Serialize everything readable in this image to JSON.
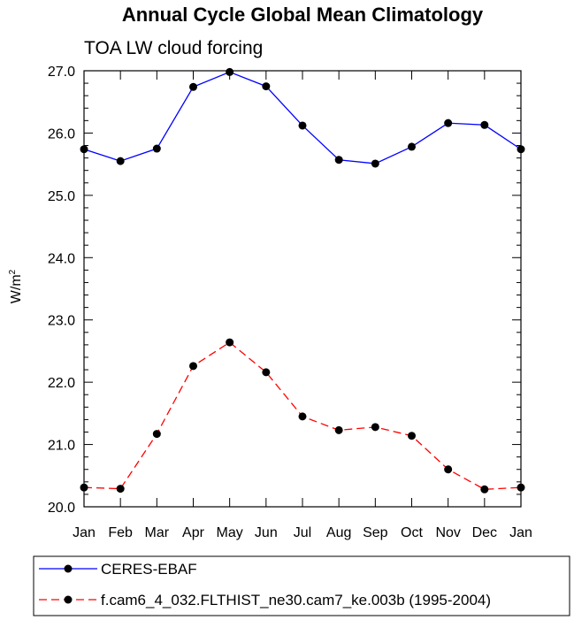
{
  "chart_data": {
    "type": "line",
    "title": "Annual Cycle Global Mean Climatology",
    "subtitle": "TOA LW cloud forcing",
    "ylabel": "W/m",
    "ylabel_sup": "2",
    "categories": [
      "Jan",
      "Feb",
      "Mar",
      "Apr",
      "May",
      "Jun",
      "Jul",
      "Aug",
      "Sep",
      "Oct",
      "Nov",
      "Dec",
      "Jan"
    ],
    "ylim": [
      20.0,
      27.0
    ],
    "yticks": [
      "20.0",
      "21.0",
      "22.0",
      "23.0",
      "24.0",
      "25.0",
      "26.0",
      "27.0"
    ],
    "series": [
      {
        "name": "CERES-EBAF",
        "color": "#0000ff",
        "dashed": false,
        "values": [
          25.74,
          25.55,
          25.75,
          26.74,
          26.98,
          26.75,
          26.12,
          25.57,
          25.51,
          25.78,
          26.16,
          26.13,
          25.74
        ]
      },
      {
        "name": "f.cam6_4_032.FLTHIST_ne30.cam7_ke.003b (1995-2004)",
        "color": "#ff0000",
        "dashed": true,
        "values": [
          20.31,
          20.29,
          21.17,
          22.26,
          22.64,
          22.16,
          21.45,
          21.23,
          21.28,
          21.14,
          20.6,
          20.28,
          20.31
        ]
      }
    ],
    "legend_position": "bottom"
  }
}
